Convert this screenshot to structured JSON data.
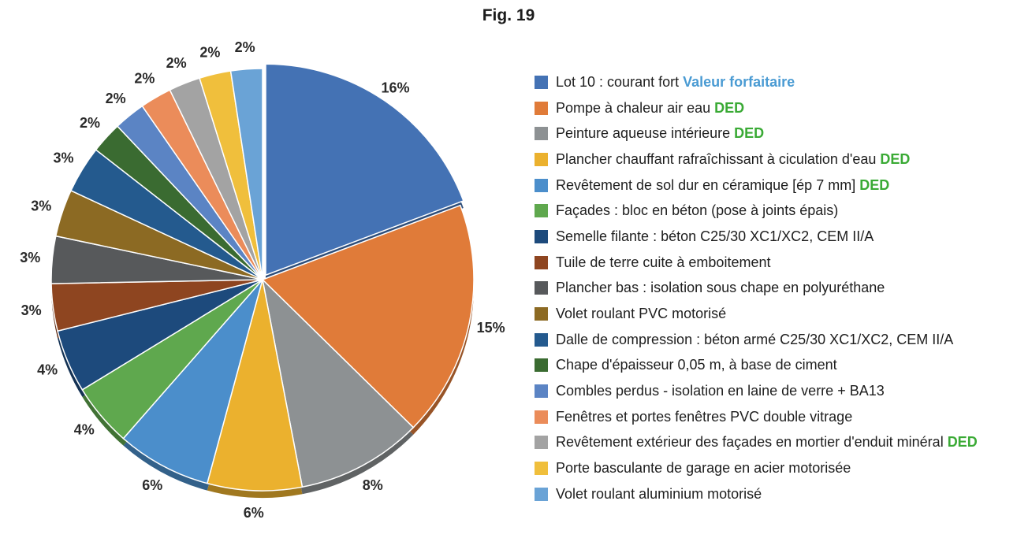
{
  "figure_title": "Fig. 19",
  "chart_data": {
    "type": "pie",
    "title": "Fig. 19",
    "legend_position": "right",
    "slices": [
      {
        "label": "Lot 10 : courant fort",
        "tag": "Valeur forfaitaire",
        "tag_color": "#4a9bd3",
        "value": 16,
        "label_text": "16%",
        "color": "#4472b4"
      },
      {
        "label": "Pompe à chaleur air eau",
        "tag": "DED",
        "tag_color": "#3aaa35",
        "value": 15,
        "label_text": "15%",
        "color": "#e07b39"
      },
      {
        "label": "Peinture aqueuse intérieure",
        "tag": "DED",
        "tag_color": "#3aaa35",
        "value": 8,
        "label_text": "8%",
        "color": "#8d9193"
      },
      {
        "label": "Plancher chauffant rafraîchissant à ciculation d'eau",
        "tag": "DED",
        "tag_color": "#3aaa35",
        "value": 6,
        "label_text": "6%",
        "color": "#ebb12e"
      },
      {
        "label": "Revêtement de sol dur en céramique [ép 7 mm]",
        "tag": "DED",
        "tag_color": "#3aaa35",
        "value": 6,
        "label_text": "6%",
        "color": "#4b8ecb"
      },
      {
        "label": "Façades : bloc en béton (pose à joints épais)",
        "tag": "",
        "tag_color": "",
        "value": 4,
        "label_text": "4%",
        "color": "#5fa84e"
      },
      {
        "label": "Semelle filante : béton C25/30 XC1/XC2, CEM II/A",
        "tag": "",
        "tag_color": "",
        "value": 4,
        "label_text": "4%",
        "color": "#1d4a7c"
      },
      {
        "label": "Tuile de terre cuite à emboitement",
        "tag": "",
        "tag_color": "",
        "value": 3,
        "label_text": "3%",
        "color": "#8e4520"
      },
      {
        "label": "Plancher bas : isolation sous chape en polyuréthane",
        "tag": "",
        "tag_color": "",
        "value": 3,
        "label_text": "3%",
        "color": "#57595b"
      },
      {
        "label": "Volet roulant PVC motorisé",
        "tag": "",
        "tag_color": "",
        "value": 3,
        "label_text": "3%",
        "color": "#8c6a23"
      },
      {
        "label": "Dalle de compression : béton armé C25/30 XC1/XC2, CEM II/A",
        "tag": "",
        "tag_color": "",
        "value": 3,
        "label_text": "3%",
        "color": "#245a8e"
      },
      {
        "label": "Chape d'épaisseur 0,05 m, à base de ciment",
        "tag": "",
        "tag_color": "",
        "value": 2,
        "label_text": "2%",
        "color": "#3a6b31"
      },
      {
        "label": "Combles perdus - isolation en laine de verre + BA13",
        "tag": "",
        "tag_color": "",
        "value": 2,
        "label_text": "2%",
        "color": "#5b84c4"
      },
      {
        "label": "Fenêtres et portes fenêtres PVC double vitrage",
        "tag": "",
        "tag_color": "",
        "value": 2,
        "label_text": "2%",
        "color": "#eb8c5a"
      },
      {
        "label": "Revêtement extérieur des façades en mortier d'enduit minéral",
        "tag": "DED",
        "tag_color": "#3aaa35",
        "value": 2,
        "label_text": "2%",
        "color": "#a3a3a3"
      },
      {
        "label": "Porte basculante de garage en acier motorisée",
        "tag": "",
        "tag_color": "",
        "value": 2,
        "label_text": "2%",
        "color": "#f0bf3c"
      },
      {
        "label": "Volet roulant aluminium motorisé",
        "tag": "",
        "tag_color": "",
        "value": 2,
        "label_text": "2%",
        "color": "#6aa3d6"
      }
    ]
  }
}
